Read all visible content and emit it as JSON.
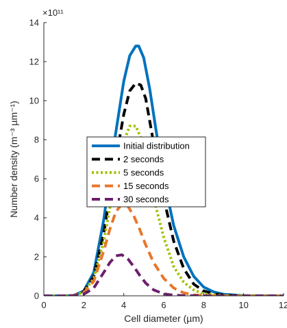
{
  "chart_data": {
    "type": "line",
    "xlabel": "Cell diameter (µm)",
    "ylabel": "Number density (m⁻³ µm⁻¹)",
    "exponent_label": "×10¹¹",
    "xlim": [
      0,
      12
    ],
    "ylim": [
      0,
      14
    ],
    "xticks": [
      0,
      2,
      4,
      6,
      8,
      10,
      12
    ],
    "yticks": [
      0,
      2,
      4,
      6,
      8,
      10,
      12,
      14
    ],
    "grid": false,
    "legend_position": "center",
    "series": [
      {
        "name": "Initial distribution",
        "color": "#0072BD",
        "dash": "solid",
        "x": [
          0,
          1,
          1.5,
          2,
          2.5,
          3,
          3.5,
          4,
          4.3,
          4.6,
          4.75,
          5,
          5.3,
          5.6,
          6,
          6.5,
          7,
          7.5,
          8,
          8.5,
          9,
          10,
          12
        ],
        "y": [
          0,
          0,
          0.02,
          0.25,
          1.2,
          3.9,
          7.7,
          11.0,
          12.3,
          12.8,
          12.8,
          12.2,
          10.6,
          8.6,
          6.0,
          3.6,
          2.0,
          1.0,
          0.45,
          0.2,
          0.08,
          0.01,
          0
        ]
      },
      {
        "name": "2 seconds",
        "color": "#000000",
        "dash": "long",
        "x": [
          0,
          1,
          1.5,
          2,
          2.5,
          3,
          3.5,
          4,
          4.3,
          4.6,
          4.85,
          5.1,
          5.5,
          6,
          6.5,
          7,
          7.5,
          8,
          8.5,
          9,
          10,
          12
        ],
        "y": [
          0,
          0,
          0.02,
          0.22,
          1.0,
          3.2,
          6.4,
          9.3,
          10.5,
          10.9,
          10.8,
          10.1,
          7.8,
          5.0,
          2.8,
          1.4,
          0.6,
          0.25,
          0.1,
          0.04,
          0,
          0
        ]
      },
      {
        "name": "5 seconds",
        "color": "#A2BF00",
        "dash": "dot",
        "x": [
          0,
          1,
          1.5,
          2,
          2.5,
          3,
          3.5,
          4,
          4.3,
          4.6,
          4.9,
          5.2,
          5.6,
          6,
          6.5,
          7,
          7.5,
          8,
          9,
          12
        ],
        "y": [
          0,
          0,
          0.02,
          0.18,
          0.9,
          2.8,
          5.6,
          7.9,
          8.7,
          8.7,
          8.0,
          6.6,
          4.6,
          3.0,
          1.5,
          0.7,
          0.3,
          0.1,
          0.01,
          0
        ]
      },
      {
        "name": "15 seconds",
        "color": "#E8762B",
        "dash": "long",
        "x": [
          0,
          1,
          1.5,
          2,
          2.5,
          3,
          3.3,
          3.6,
          3.9,
          4.2,
          4.5,
          4.8,
          5.1,
          5.5,
          6,
          6.5,
          7,
          7.5,
          8,
          9,
          12
        ],
        "y": [
          0,
          0,
          0.02,
          0.15,
          0.75,
          2.3,
          3.4,
          4.3,
          4.7,
          4.6,
          4.1,
          3.4,
          2.6,
          1.7,
          0.9,
          0.4,
          0.15,
          0.05,
          0.01,
          0,
          0
        ]
      },
      {
        "name": "30 seconds",
        "color": "#6B1F6B",
        "dash": "long",
        "x": [
          0,
          1,
          1.5,
          2,
          2.5,
          3,
          3.3,
          3.6,
          3.9,
          4.2,
          4.5,
          4.8,
          5.1,
          5.5,
          6,
          6.5,
          7,
          8,
          12
        ],
        "y": [
          0,
          0,
          0.01,
          0.08,
          0.4,
          1.2,
          1.7,
          2.05,
          2.1,
          1.9,
          1.5,
          1.05,
          0.65,
          0.3,
          0.1,
          0.03,
          0.01,
          0,
          0
        ]
      }
    ]
  }
}
